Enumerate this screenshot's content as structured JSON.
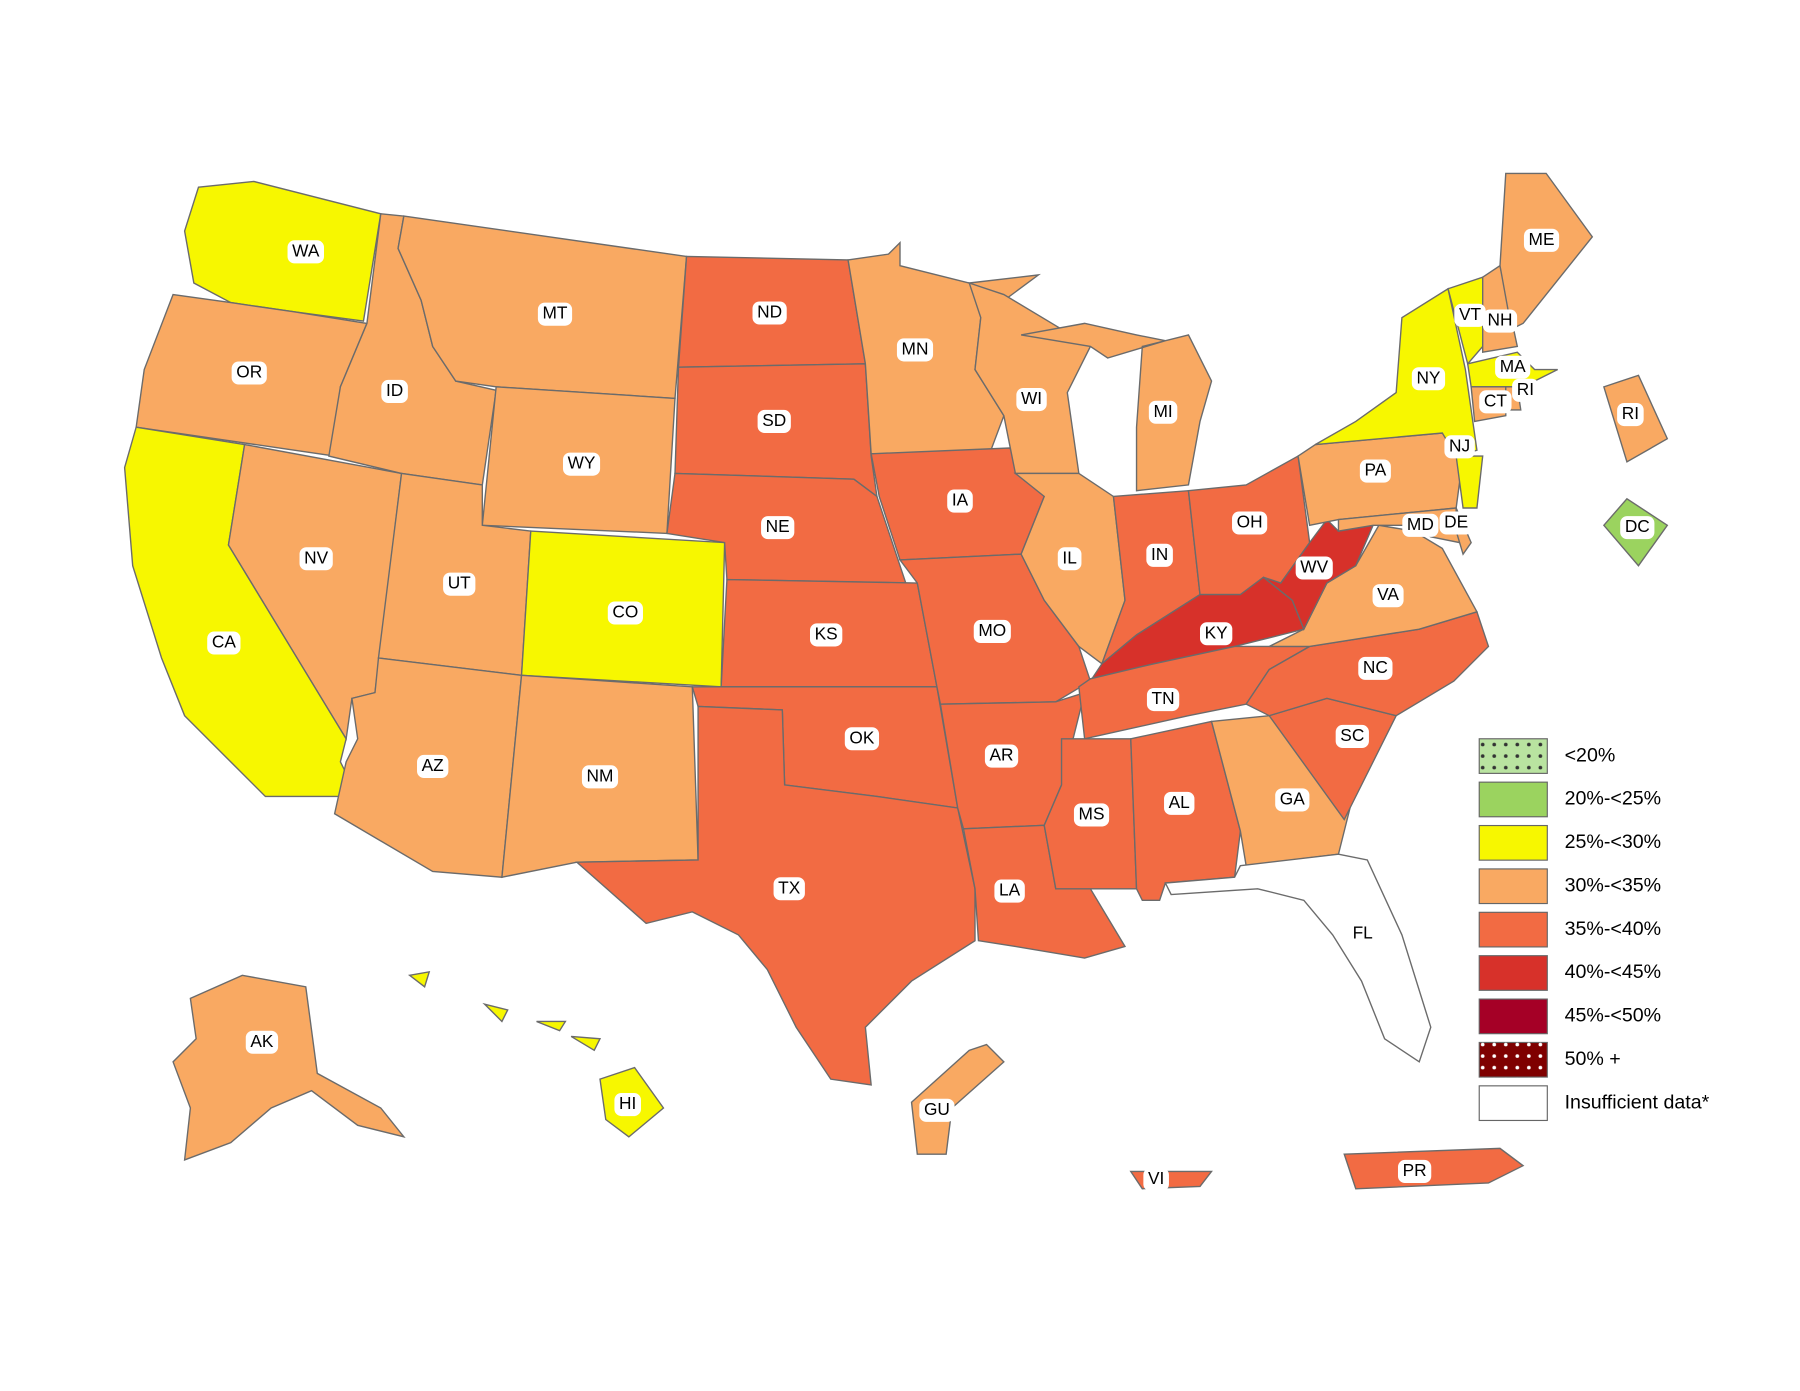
{
  "legend": {
    "items": [
      {
        "label": "<20%",
        "color": "#b9e3a0",
        "pattern": "dots"
      },
      {
        "label": "20%-<25%",
        "color": "#9bd35f"
      },
      {
        "label": "25%-<30%",
        "color": "#f7f700"
      },
      {
        "label": "30%-<35%",
        "color": "#f9a962"
      },
      {
        "label": "35%-<40%",
        "color": "#f26b43"
      },
      {
        "label": "40%-<45%",
        "color": "#d7312a"
      },
      {
        "label": "45%-<50%",
        "color": "#a50026"
      },
      {
        "label": "50% +",
        "color": "#7f0000",
        "pattern": "dots"
      },
      {
        "label": "Insufficient data*",
        "color": "#ffffff"
      }
    ]
  },
  "regions": [
    {
      "label": "WA",
      "category": "25%-<30%"
    },
    {
      "label": "OR",
      "category": "30%-<35%"
    },
    {
      "label": "CA",
      "category": "25%-<30%"
    },
    {
      "label": "NV",
      "category": "30%-<35%"
    },
    {
      "label": "ID",
      "category": "30%-<35%"
    },
    {
      "label": "MT",
      "category": "30%-<35%"
    },
    {
      "label": "WY",
      "category": "30%-<35%"
    },
    {
      "label": "UT",
      "category": "30%-<35%"
    },
    {
      "label": "CO",
      "category": "25%-<30%"
    },
    {
      "label": "AZ",
      "category": "30%-<35%"
    },
    {
      "label": "NM",
      "category": "30%-<35%"
    },
    {
      "label": "ND",
      "category": "35%-<40%"
    },
    {
      "label": "SD",
      "category": "35%-<40%"
    },
    {
      "label": "NE",
      "category": "35%-<40%"
    },
    {
      "label": "KS",
      "category": "35%-<40%"
    },
    {
      "label": "OK",
      "category": "35%-<40%"
    },
    {
      "label": "TX",
      "category": "35%-<40%"
    },
    {
      "label": "MN",
      "category": "30%-<35%"
    },
    {
      "label": "IA",
      "category": "35%-<40%"
    },
    {
      "label": "MO",
      "category": "35%-<40%"
    },
    {
      "label": "AR",
      "category": "35%-<40%"
    },
    {
      "label": "LA",
      "category": "35%-<40%"
    },
    {
      "label": "WI",
      "category": "30%-<35%"
    },
    {
      "label": "IL",
      "category": "30%-<35%"
    },
    {
      "label": "MI",
      "category": "30%-<35%"
    },
    {
      "label": "IN",
      "category": "35%-<40%"
    },
    {
      "label": "OH",
      "category": "35%-<40%"
    },
    {
      "label": "KY",
      "category": "40%-<45%"
    },
    {
      "label": "TN",
      "category": "35%-<40%"
    },
    {
      "label": "MS",
      "category": "35%-<40%"
    },
    {
      "label": "AL",
      "category": "35%-<40%"
    },
    {
      "label": "GA",
      "category": "30%-<35%"
    },
    {
      "label": "FL",
      "category": "Insufficient data*"
    },
    {
      "label": "SC",
      "category": "35%-<40%"
    },
    {
      "label": "NC",
      "category": "35%-<40%"
    },
    {
      "label": "VA",
      "category": "30%-<35%"
    },
    {
      "label": "WV",
      "category": "40%-<45%"
    },
    {
      "label": "PA",
      "category": "30%-<35%"
    },
    {
      "label": "MD",
      "category": "30%-<35%"
    },
    {
      "label": "DE",
      "category": "30%-<35%"
    },
    {
      "label": "NJ",
      "category": "25%-<30%"
    },
    {
      "label": "NY",
      "category": "25%-<30%"
    },
    {
      "label": "VT",
      "category": "25%-<30%"
    },
    {
      "label": "NH",
      "category": "30%-<35%"
    },
    {
      "label": "ME",
      "category": "30%-<35%"
    },
    {
      "label": "MA",
      "category": "25%-<30%"
    },
    {
      "label": "CT",
      "category": "30%-<35%"
    },
    {
      "label": "RI",
      "category": "30%-<35%"
    },
    {
      "label": "RI",
      "category": "30%-<35%"
    },
    {
      "label": "DC",
      "category": "20%-<25%"
    },
    {
      "label": "AK",
      "category": "30%-<35%"
    },
    {
      "label": "HI",
      "category": "25%-<30%"
    },
    {
      "label": "GU",
      "category": "30%-<35%"
    },
    {
      "label": "VI",
      "category": "35%-<40%"
    },
    {
      "label": "PR",
      "category": "35%-<40%"
    }
  ]
}
